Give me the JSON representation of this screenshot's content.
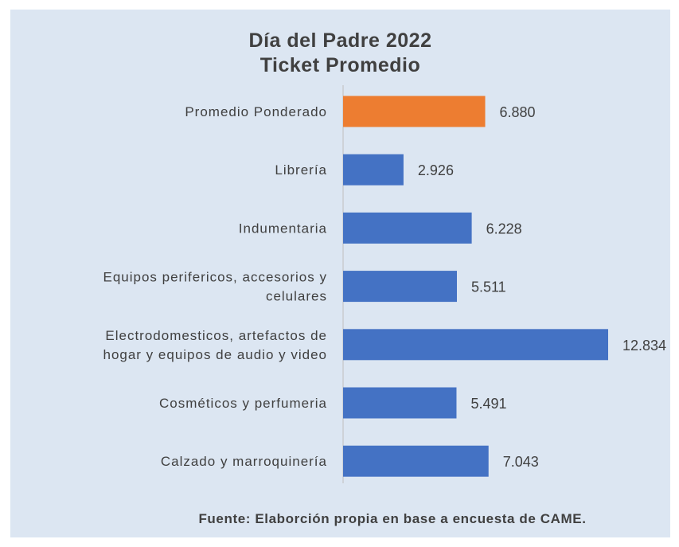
{
  "chart_data": {
    "type": "bar",
    "orientation": "horizontal",
    "title_lines": [
      "Día del Padre 2022",
      "Ticket Promedio"
    ],
    "categories": [
      [
        "Promedio Ponderado"
      ],
      [
        "Librería"
      ],
      [
        "Indumentaria"
      ],
      [
        "Equipos perifericos, accesorios  y",
        "celulares"
      ],
      [
        "Electrodomesticos, artefactos de",
        "hogar y equipos de audio y video"
      ],
      [
        "Cosméticos y perfumeria"
      ],
      [
        "Calzado y marroquinería"
      ]
    ],
    "values": [
      6880,
      2926,
      6228,
      5511,
      12834,
      5491,
      7043
    ],
    "value_labels": [
      "6.880",
      "2.926",
      "6.228",
      "5.511",
      "12.834",
      "5.491",
      "7.043"
    ],
    "bar_colors": [
      "#ed7d31",
      "#4472c4",
      "#4472c4",
      "#4472c4",
      "#4472c4",
      "#4472c4",
      "#4472c4"
    ],
    "xlim": [
      0,
      12834
    ],
    "grid": false,
    "legend": "none",
    "source": "Fuente: Elaborción propia en base a encuesta de CAME."
  },
  "colors": {
    "background": "#dce6f2",
    "highlight": "#ed7d31",
    "bar": "#4472c4",
    "text": "#404040"
  }
}
